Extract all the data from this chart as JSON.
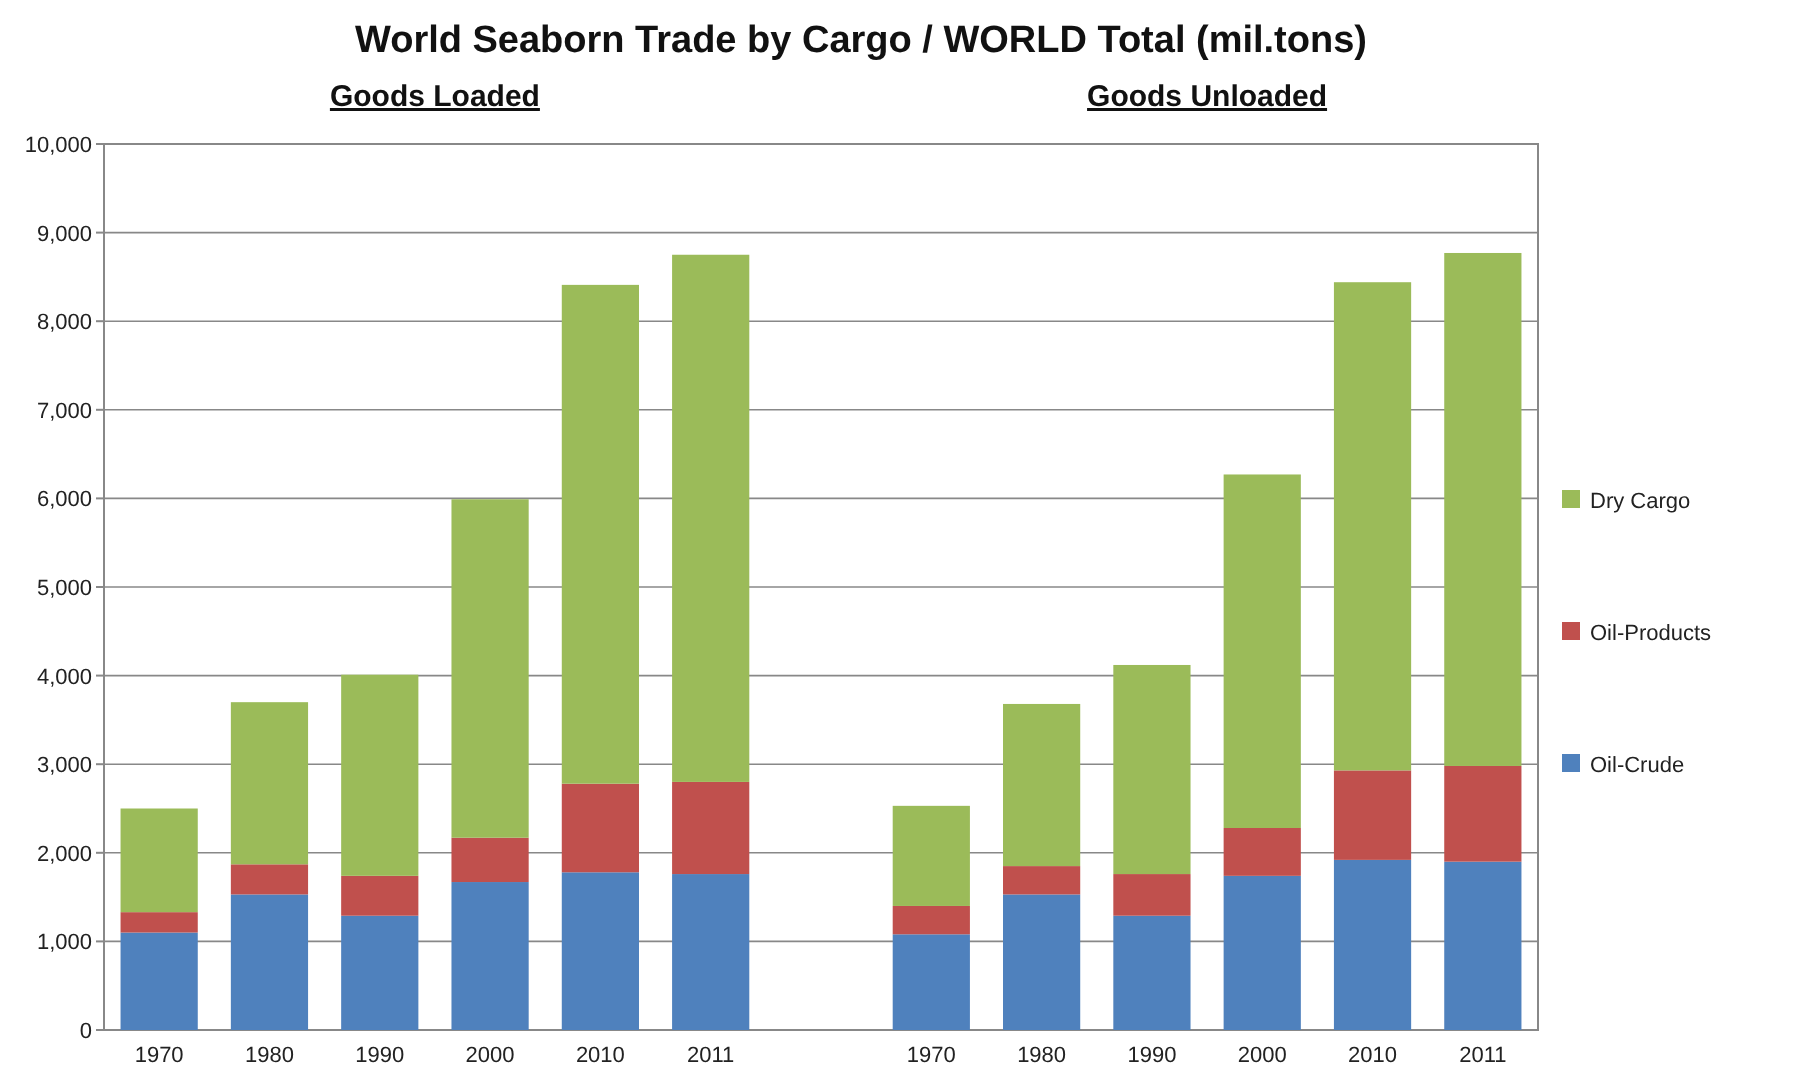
{
  "chart_data": {
    "type": "bar",
    "stacked": true,
    "title": "World Seaborn Trade by Cargo  /   WORLD Total  (mil.tons)",
    "annotations": [
      "Goods Loaded",
      "Goods Unloaded"
    ],
    "categories": [
      "1970",
      "1980",
      "1990",
      "2000",
      "2010",
      "2011",
      null,
      "1970",
      "1980",
      "1990",
      "2000",
      "2010",
      "2011"
    ],
    "series": [
      {
        "name": "Oil-Crude",
        "color": "#4f81bd",
        "values": [
          1100,
          1530,
          1290,
          1670,
          1780,
          1760,
          null,
          1080,
          1530,
          1290,
          1740,
          1920,
          1900
        ]
      },
      {
        "name": "Oil-Products",
        "color": "#c0504d",
        "values": [
          230,
          340,
          450,
          500,
          1000,
          1040,
          null,
          320,
          320,
          470,
          540,
          1010,
          1080
        ]
      },
      {
        "name": "Dry Cargo",
        "color": "#9bbb59",
        "values": [
          1170,
          1830,
          2270,
          3820,
          5630,
          5950,
          null,
          1130,
          1830,
          2360,
          3990,
          5510,
          5790
        ]
      }
    ],
    "ylim": [
      0,
      10000
    ],
    "yticks": [
      0,
      {
        "value": 1000,
        "label": "1,000"
      },
      {
        "value": 2000,
        "label": "2,000"
      },
      {
        "value": 3000,
        "label": "3,000"
      },
      {
        "value": 4000,
        "label": "4,000"
      },
      {
        "value": 5000,
        "label": "5,000"
      },
      {
        "value": 6000,
        "label": "6,000"
      },
      {
        "value": 7000,
        "label": "7,000"
      },
      {
        "value": 8000,
        "label": "8,000"
      },
      {
        "value": 9000,
        "label": "9,000"
      },
      {
        "value": 10000,
        "label": "10,000"
      }
    ],
    "grid": "y",
    "legend": "right"
  }
}
